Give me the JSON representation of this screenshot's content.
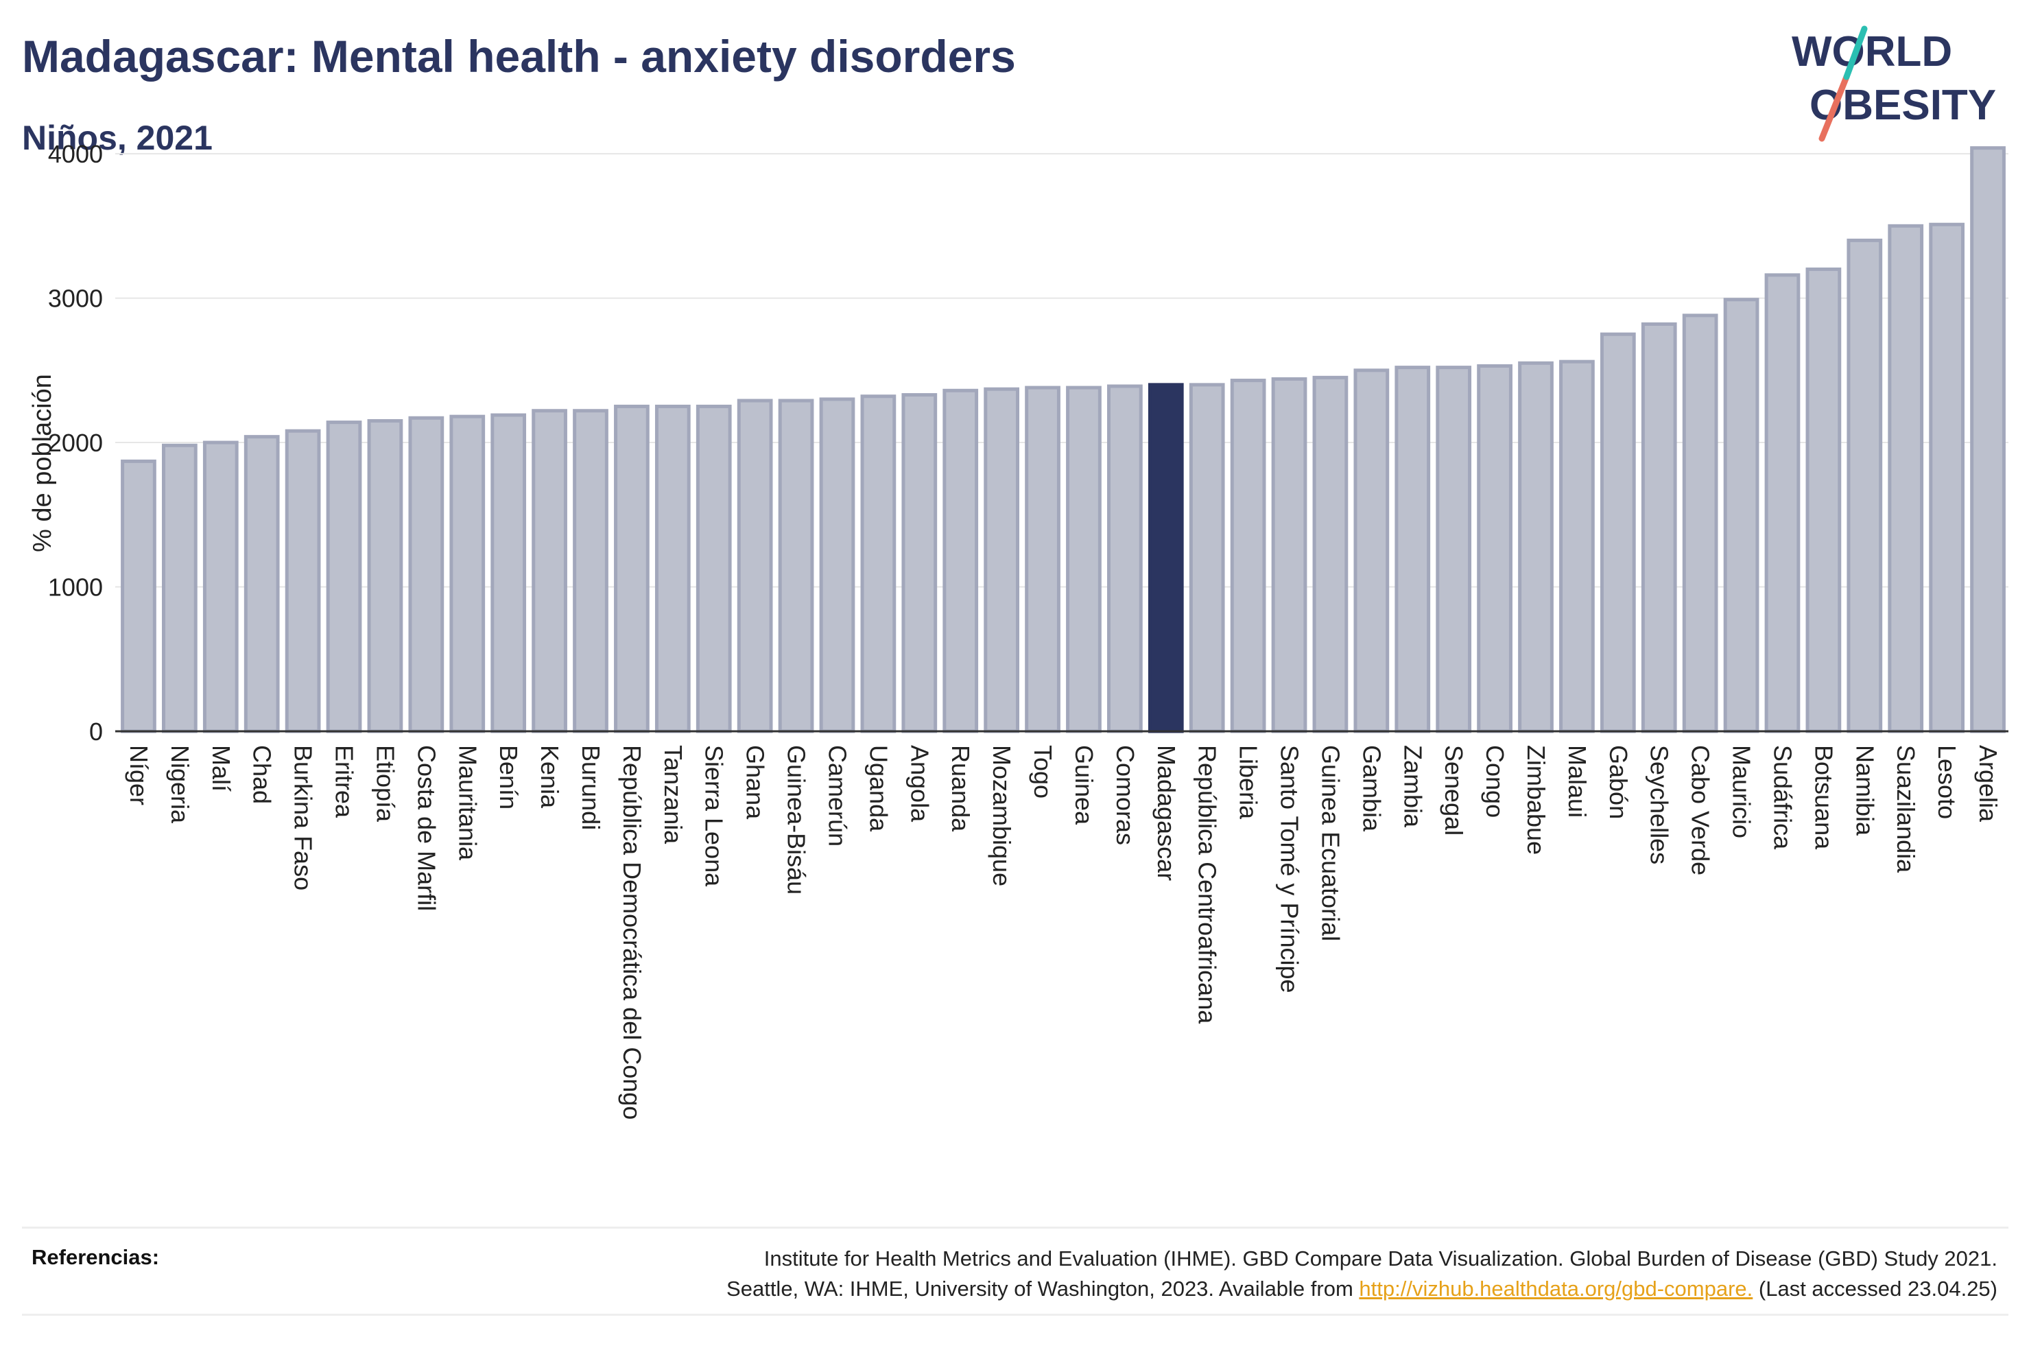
{
  "header": {
    "title": "Madagascar: Mental health - anxiety disorders",
    "subtitle": "Niños, 2021"
  },
  "logo": {
    "line1": "WORLD",
    "line2": "OBESITY"
  },
  "colors": {
    "bar": "#bcc0cd",
    "bar_edge": "#a2a7bb",
    "highlight": "#2b3560",
    "title": "#2b3560",
    "link": "#e6a119"
  },
  "chart_data": {
    "type": "bar",
    "ylabel": "% de población",
    "ylim": [
      0,
      4200
    ],
    "yticks": [
      0,
      1000,
      2000,
      3000,
      4000
    ],
    "grid": true,
    "highlight": "Madagascar",
    "categories": [
      "Níger",
      "Nigeria",
      "Malí",
      "Chad",
      "Burkina Faso",
      "Eritrea",
      "Etiopía",
      "Costa de Marfil",
      "Mauritania",
      "Benín",
      "Kenia",
      "Burundi",
      "República Democrática del Congo",
      "Tanzania",
      "Sierra Leona",
      "Ghana",
      "Guinea-Bisáu",
      "Camerún",
      "Uganda",
      "Angola",
      "Ruanda",
      "Mozambique",
      "Togo",
      "Guinea",
      "Comoras",
      "Madagascar",
      "República Centroafricana",
      "Liberia",
      "Santo Tomé y Príncipe",
      "Guinea Ecuatorial",
      "Gambia",
      "Zambia",
      "Senegal",
      "Congo",
      "Zimbabue",
      "Malaui",
      "Gabón",
      "Seychelles",
      "Cabo Verde",
      "Mauricio",
      "Sudáfrica",
      "Botsuana",
      "Namibia",
      "Suazilandia",
      "Lesoto",
      "Argelia"
    ],
    "values": [
      1870,
      1980,
      2000,
      2040,
      2080,
      2140,
      2150,
      2170,
      2180,
      2190,
      2220,
      2220,
      2250,
      2250,
      2250,
      2290,
      2290,
      2300,
      2320,
      2330,
      2360,
      2370,
      2380,
      2380,
      2390,
      2400,
      2400,
      2430,
      2440,
      2450,
      2500,
      2520,
      2520,
      2530,
      2550,
      2560,
      2750,
      2820,
      2880,
      2990,
      3160,
      3200,
      3400,
      3500,
      3510,
      4040
    ]
  },
  "references": {
    "label": "Referencias:",
    "line1": "Institute for Health Metrics and Evaluation (IHME). GBD Compare Data Visualization. Global Burden of Disease (GBD) Study 2021.",
    "line2_pre": "Seattle, WA: IHME, University of Washington, 2023. Available from ",
    "link": "http://vizhub.healthdata.org/gbd-compare.",
    "line2_post": " (Last accessed 23.04.25)"
  }
}
